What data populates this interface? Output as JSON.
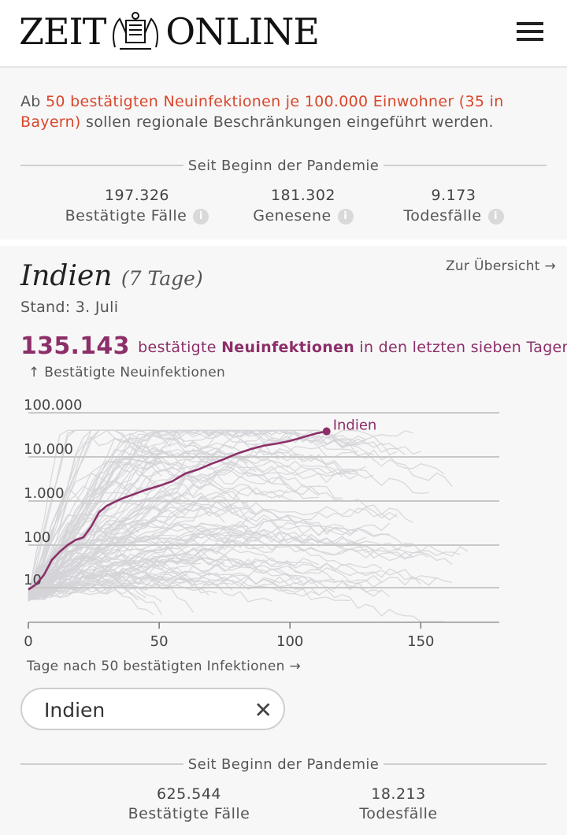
{
  "header": {
    "logo_left": "ZEIT",
    "logo_right": "ONLINE"
  },
  "intro": {
    "prefix": "Ab ",
    "highlight": "50 bestätigten Neuinfektionen je 100.000 Einwohner (35 in Bayern)",
    "suffix": " sollen regionale Beschränkungen eingeführt werden."
  },
  "germany": {
    "section_title": "Seit Beginn der Pandemie",
    "stats": [
      {
        "value": "197.326",
        "label": "Bestätigte Fälle"
      },
      {
        "value": "181.302",
        "label": "Genesene"
      },
      {
        "value": "9.173",
        "label": "Todesfälle"
      }
    ],
    "info_icon": "i"
  },
  "detail": {
    "country": "Indien",
    "period": "(7 Tage)",
    "overview_link": "Zur Übersicht →",
    "stand": "Stand: 3. Juli",
    "weekly_number": "135.143",
    "weekly_pre": "bestätigte",
    "weekly_bold": "Neuinfektionen",
    "weekly_post": "in den letzten sieben Tagen",
    "y_axis_label": "↑ Bestätigte Neuinfektionen",
    "x_axis_label": "Tage nach 50 bestätigten Infektionen →",
    "search_value": "Indien",
    "clear_icon": "✕",
    "section_title": "Seit Beginn der Pandemie",
    "stats": [
      {
        "value": "625.544",
        "label": "Bestätigte Fälle"
      },
      {
        "value": "18.213",
        "label": "Todesfälle"
      }
    ]
  },
  "chart_data": {
    "type": "line",
    "title": "",
    "xlabel": "Tage nach 50 bestätigten Infektionen →",
    "ylabel": "↑ Bestätigte Neuinfektionen",
    "y_scale": "log",
    "xlim": [
      0,
      180
    ],
    "ylim": [
      1,
      100000
    ],
    "x_ticks": [
      0,
      50,
      100,
      150
    ],
    "x_tick_labels": [
      "0",
      "50",
      "100",
      "150"
    ],
    "y_ticks": [
      10,
      100,
      1000,
      10000,
      100000
    ],
    "y_tick_labels": [
      "10",
      "100",
      "1.000",
      "10.000",
      "100.000"
    ],
    "grid": true,
    "highlight_color": "#8c2f69",
    "background_color": "#d4d4d8",
    "series": [
      {
        "name": "Indien",
        "x": [
          0,
          3,
          6,
          9,
          12,
          15,
          18,
          21,
          24,
          27,
          30,
          33,
          36,
          40,
          45,
          50,
          55,
          60,
          65,
          70,
          75,
          80,
          85,
          90,
          95,
          100,
          105,
          110,
          114
        ],
        "y": [
          9,
          12,
          20,
          45,
          70,
          100,
          130,
          150,
          260,
          550,
          780,
          950,
          1150,
          1400,
          1800,
          2200,
          2800,
          4200,
          5200,
          7000,
          9000,
          12000,
          15000,
          18000,
          20000,
          23000,
          28000,
          34000,
          38000
        ]
      }
    ]
  }
}
